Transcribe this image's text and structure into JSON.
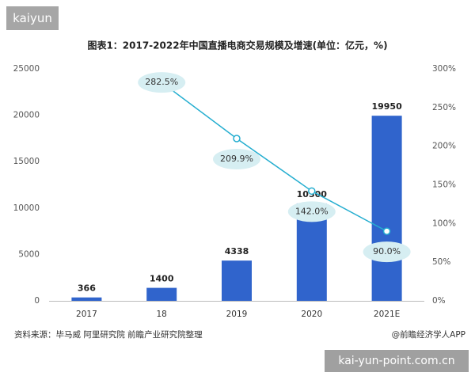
{
  "tag": "kaiyun",
  "chart_data": {
    "type": "bar",
    "title": "图表1：2017-2022年中国直播电商交易规模及增速(单位：亿元，%)",
    "categories": [
      "2017",
      "18",
      "2019",
      "2020",
      "2021E"
    ],
    "series": [
      {
        "color": "#3064cc",
        "values": [
          366,
          1400,
          4338,
          10500,
          19950
        ]
      },
      {
        "type": "line",
        "axis": "y2",
        "color": "#25aed0",
        "values": [
          null,
          282.5,
          209.9,
          142.0,
          90.0
        ],
        "value_labels": [
          null,
          "282.5%",
          "209.9%",
          "142.0%",
          "90.0%"
        ]
      }
    ],
    "ylim": [
      0,
      25000
    ],
    "yticks": [
      0,
      5000,
      10000,
      15000,
      20000,
      25000
    ],
    "y2lim": [
      0,
      300
    ],
    "y2ticks": [
      {
        "value": 0,
        "label": "0%"
      },
      {
        "value": 50,
        "label": "50%"
      },
      {
        "value": 100,
        "label": "100%"
      },
      {
        "value": 150,
        "label": "150%"
      },
      {
        "value": 200,
        "label": "200%"
      },
      {
        "value": 250,
        "label": "250%"
      },
      {
        "value": 300,
        "label": "300%"
      }
    ],
    "grid": false
  },
  "footer": {
    "source": "资料来源：毕马威 阿里研究院 前瞻产业研究院整理",
    "credit": "@前瞻经济学人APP"
  },
  "watermark": "kai-yun-point.com.cn"
}
